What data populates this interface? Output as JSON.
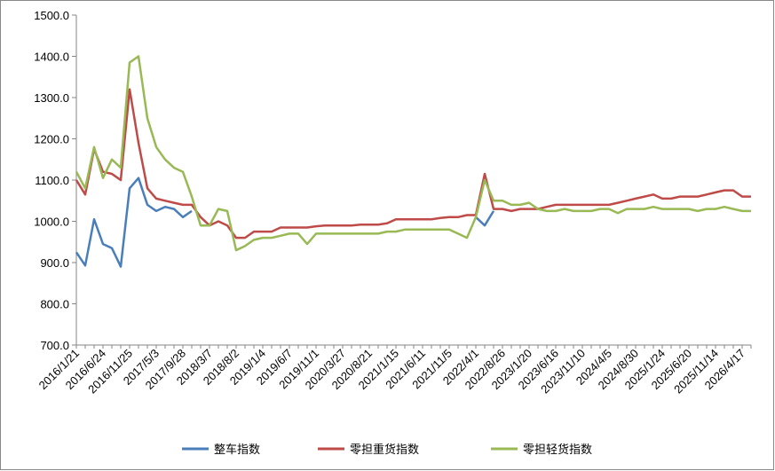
{
  "chart_data": {
    "type": "line",
    "categories": [
      "2016/1/21",
      null,
      null,
      "2016/6/24",
      null,
      null,
      "2016/11/25",
      null,
      null,
      "2017/5/3",
      null,
      null,
      "2017/9/28",
      null,
      null,
      "2018/3/7",
      null,
      null,
      "2018/8/2",
      null,
      null,
      "2019/1/4",
      null,
      null,
      "2019/6/7",
      null,
      null,
      "2019/11/1",
      null,
      null,
      "2020/3/27",
      null,
      null,
      "2020/8/21",
      null,
      null,
      "2021/1/15",
      null,
      null,
      "2021/6/11",
      null,
      null,
      "2021/11/5",
      null,
      null,
      "2022/4/1",
      null,
      null,
      "2022/8/26",
      null,
      null,
      "2023/1/20",
      null,
      null,
      "2023/6/16",
      null,
      null,
      "2023/11/10",
      null,
      null,
      "2024/4/5",
      null,
      null,
      "2024/8/30",
      null,
      null,
      "2025/1/24",
      null,
      null,
      "2025/6/20",
      null,
      null,
      "2025/11/14",
      null,
      null,
      "2026/4/17",
      null
    ],
    "series": [
      {
        "name": "整车指数",
        "color": "#4a7ebb",
        "values": [
          925,
          893,
          1005,
          945,
          935,
          890,
          1080,
          1105,
          1040,
          1025,
          1035,
          1030,
          1010,
          1025,
          null,
          null,
          null,
          null,
          null,
          null,
          null,
          null,
          null,
          null,
          null,
          null,
          null,
          null,
          null,
          null,
          null,
          null,
          null,
          null,
          null,
          null,
          null,
          null,
          null,
          null,
          null,
          null,
          null,
          null,
          null,
          1010,
          990,
          1025,
          null,
          null,
          null,
          null,
          null,
          null,
          null,
          null,
          null,
          null,
          null,
          null,
          null,
          null,
          null,
          null,
          null,
          null,
          null,
          null,
          null,
          null,
          null,
          null,
          null,
          null,
          null,
          null,
          null
        ]
      },
      {
        "name": "零担重货指数",
        "color": "#be4b48",
        "values": [
          1100,
          1065,
          1175,
          1120,
          1115,
          1100,
          1320,
          1190,
          1080,
          1055,
          1050,
          1045,
          1040,
          1040,
          1010,
          990,
          1000,
          990,
          960,
          960,
          975,
          975,
          975,
          985,
          985,
          985,
          985,
          988,
          990,
          990,
          990,
          990,
          992,
          992,
          992,
          995,
          1005,
          1005,
          1005,
          1005,
          1005,
          1008,
          1010,
          1010,
          1015,
          1015,
          1115,
          1030,
          1030,
          1025,
          1030,
          1030,
          1030,
          1035,
          1040,
          1040,
          1040,
          1040,
          1040,
          1040,
          1040,
          1045,
          1050,
          1055,
          1060,
          1065,
          1055,
          1055,
          1060,
          1060,
          1060,
          1065,
          1070,
          1075,
          1075,
          1060,
          1060
        ]
      },
      {
        "name": "零担轻货指数",
        "color": "#98b954",
        "values": [
          1120,
          1080,
          1180,
          1105,
          1150,
          1130,
          1385,
          1400,
          1250,
          1180,
          1150,
          1130,
          1120,
          1060,
          990,
          990,
          1030,
          1025,
          930,
          940,
          955,
          960,
          960,
          965,
          970,
          970,
          945,
          970,
          970,
          970,
          970,
          970,
          970,
          970,
          970,
          975,
          975,
          980,
          980,
          980,
          980,
          980,
          980,
          970,
          960,
          1010,
          1100,
          1050,
          1050,
          1040,
          1040,
          1045,
          1030,
          1025,
          1025,
          1030,
          1025,
          1025,
          1025,
          1030,
          1030,
          1020,
          1030,
          1030,
          1030,
          1035,
          1030,
          1030,
          1030,
          1030,
          1025,
          1030,
          1030,
          1035,
          1030,
          1025,
          1025
        ]
      }
    ],
    "ylim": [
      700,
      1500
    ],
    "yticks": [
      {
        "value": 700,
        "label": "700.0"
      },
      {
        "value": 800,
        "label": "800.0"
      },
      {
        "value": 900,
        "label": "900.0"
      },
      {
        "value": 1000,
        "label": "1000.0"
      },
      {
        "value": 1100,
        "label": "1100.0"
      },
      {
        "value": 1200,
        "label": "1200.0"
      },
      {
        "value": 1300,
        "label": "1300.0"
      },
      {
        "value": 1400,
        "label": "1400.0"
      },
      {
        "value": 1500,
        "label": "1500.0"
      }
    ],
    "legend": "bottom"
  }
}
